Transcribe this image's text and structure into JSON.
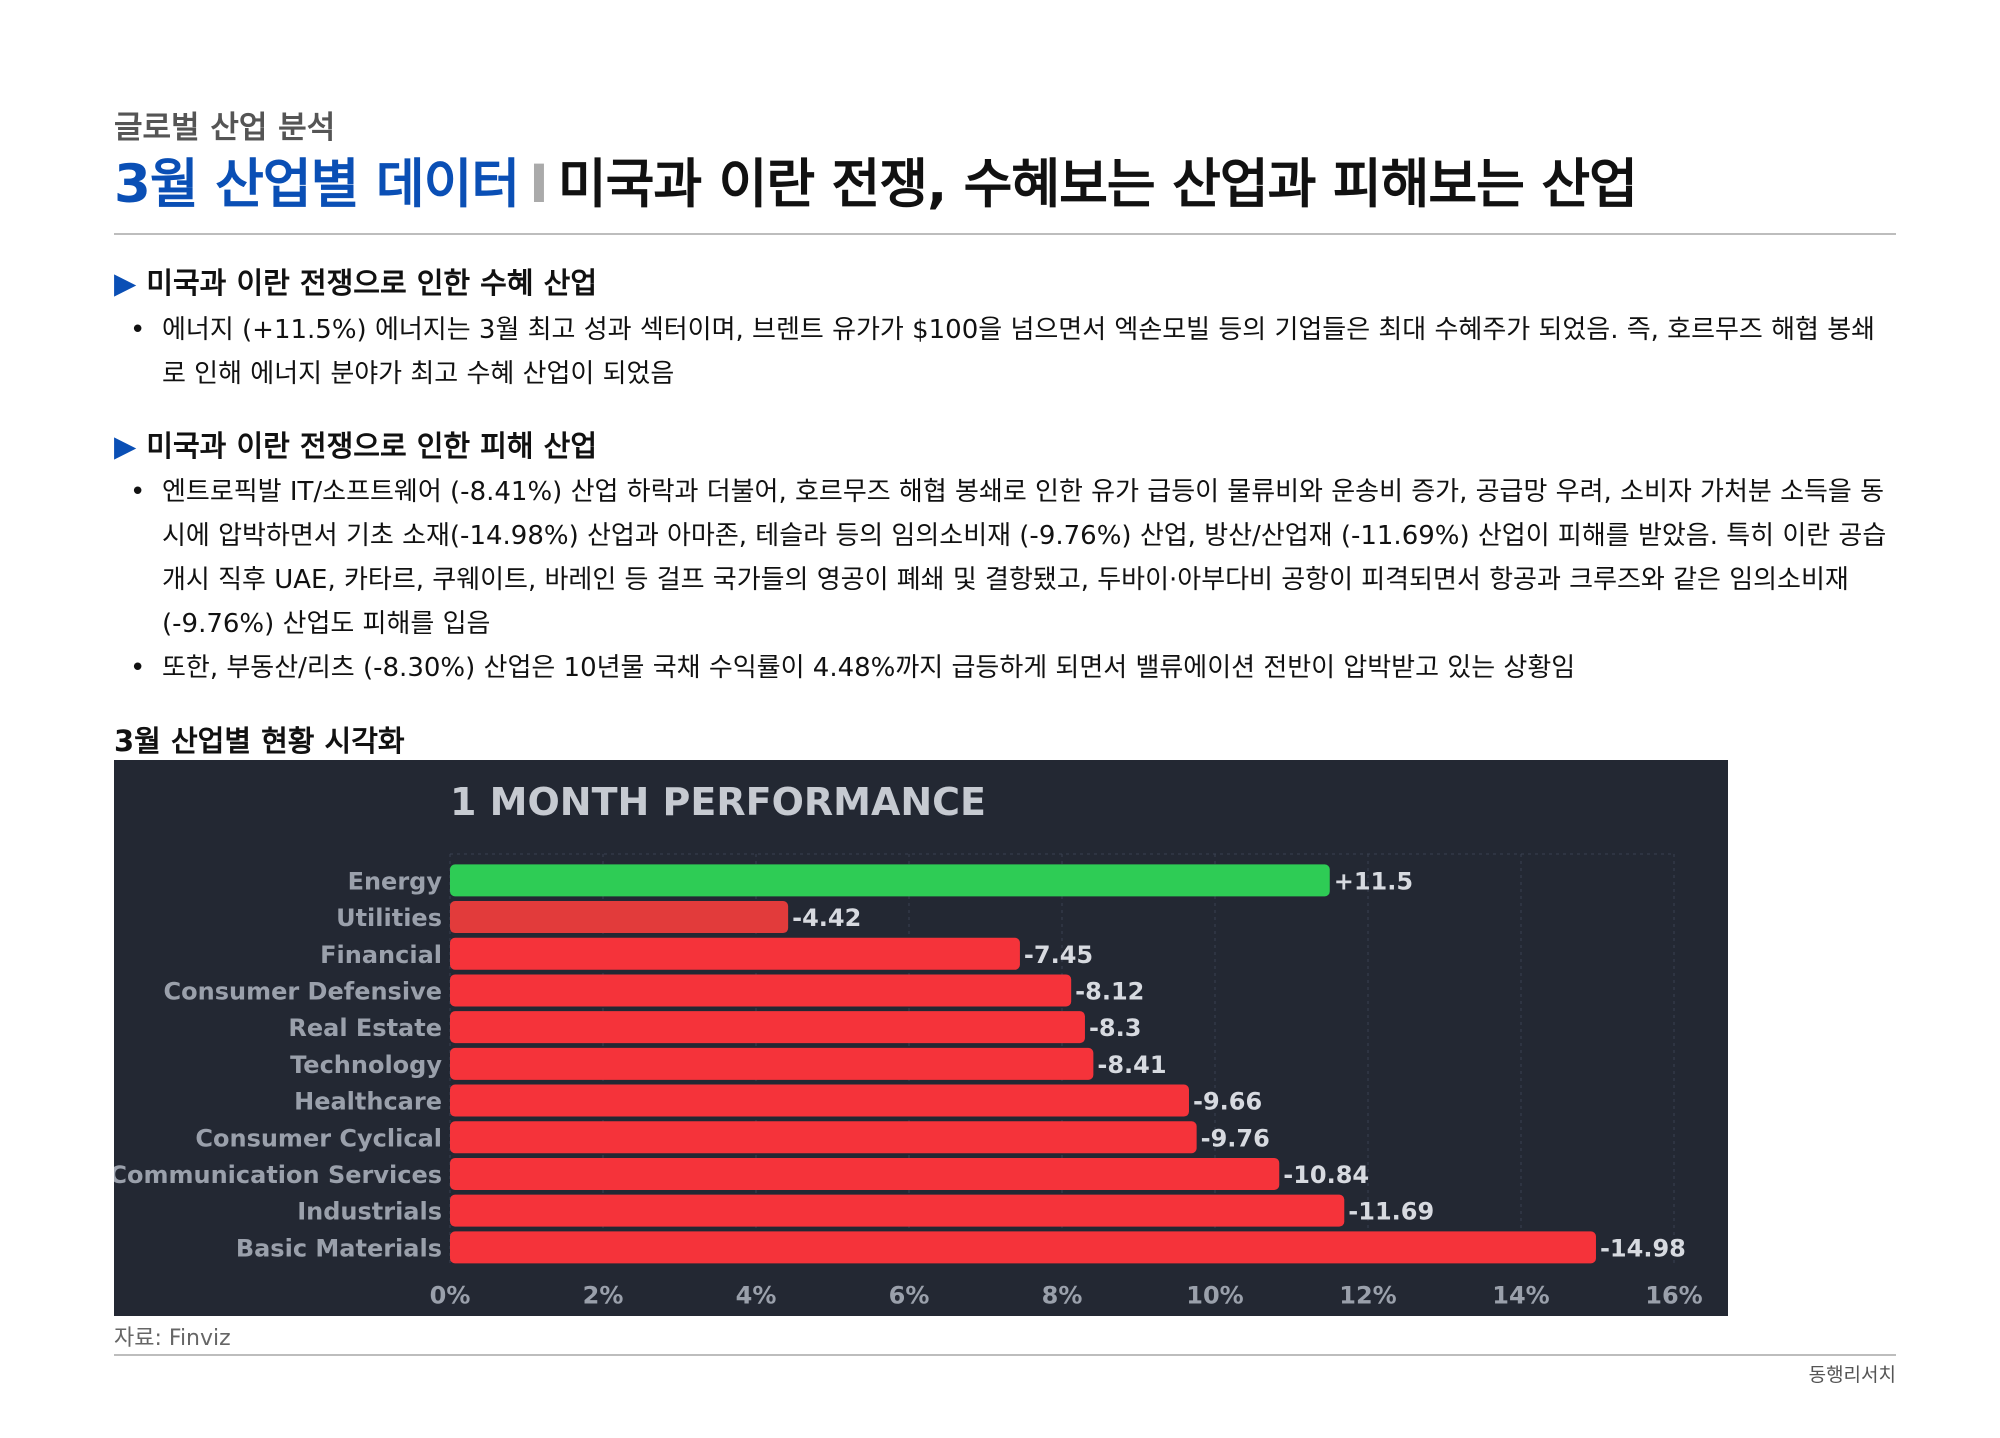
{
  "header": {
    "category": "글로벌 산업 분석",
    "title_main": "3월 산업별 데이터",
    "title_sep": "I",
    "title_sub": "미국과 이란 전쟁, 수혜보는 산업과 피해보는 산업"
  },
  "section1": {
    "marker": "▶",
    "heading": "미국과 이란 전쟁으로 인한 수혜 산업",
    "bullets": [
      "에너지 (+11.5%) 에너지는 3월 최고 성과 섹터이며, 브렌트 유가가 $100을 넘으면서 엑손모빌 등의 기업들은 최대 수혜주가 되었음. 즉, 호르무즈 해협 봉쇄로 인해 에너지 분야가 최고 수혜 산업이 되었음"
    ]
  },
  "section2": {
    "marker": "▶",
    "heading": "미국과 이란 전쟁으로 인한 피해 산업",
    "bullets": [
      "엔트로픽발 IT/소프트웨어 (-8.41%) 산업 하락과 더불어, 호르무즈 해협 봉쇄로 인한 유가 급등이 물류비와 운송비 증가, 공급망 우려, 소비자 가처분 소득을 동시에 압박하면서 기초 소재(-14.98%) 산업과 아마존, 테슬라 등의 임의소비재 (-9.76%) 산업, 방산/산업재 (-11.69%) 산업이 피해를 받았음. 특히 이란 공습 개시 직후 UAE, 카타르, 쿠웨이트, 바레인 등 걸프 국가들의 영공이 폐쇄 및 결항됐고, 두바이·아부다비 공항이 피격되면서 항공과 크루즈와 같은 임의소비재 (-9.76%) 산업도 피해를 입음",
      "또한, 부동산/리츠 (-8.30%) 산업은 10년물 국채 수익률이 4.48%까지 급등하게 되면서 밸류에이션 전반이 압박받고 있는 상황임"
    ]
  },
  "chart_section": {
    "heading": "3월 산업별 현황 시각화"
  },
  "chart_data": {
    "type": "bar",
    "orientation": "horizontal",
    "title": "1 MONTH PERFORMANCE",
    "categories": [
      "Energy",
      "Utilities",
      "Financial",
      "Consumer Defensive",
      "Real Estate",
      "Technology",
      "Healthcare",
      "Consumer Cyclical",
      "Communication Services",
      "Industrials",
      "Basic Materials"
    ],
    "values": [
      11.5,
      -4.42,
      -7.45,
      -8.12,
      -8.3,
      -8.41,
      -9.66,
      -9.76,
      -10.84,
      -11.69,
      -14.98
    ],
    "value_labels": [
      "+11.5",
      "-4.42",
      "-7.45",
      "-8.12",
      "-8.3",
      "-8.41",
      "-9.66",
      "-9.76",
      "-10.84",
      "-11.69",
      "-14.98"
    ],
    "xticks": [
      "0%",
      "2%",
      "4%",
      "6%",
      "8%",
      "10%",
      "12%",
      "14%",
      "16%"
    ],
    "xlim": [
      0,
      16
    ],
    "grid": true,
    "colors": {
      "positive": "#2ecc55",
      "negative": "#f5333a",
      "utilities": "#e23b3b",
      "background": "#232833",
      "text": "#9aa0ab",
      "title": "#c6cad1",
      "grid": "#3a4150"
    }
  },
  "footer": {
    "source": "자료: Finviz",
    "brand": "동행리서치"
  }
}
